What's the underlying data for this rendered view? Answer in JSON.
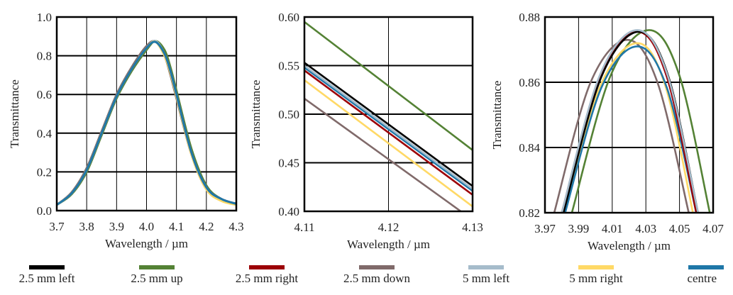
{
  "colors": {
    "2.5 mm left": "#000000",
    "2.5 mm up": "#548235",
    "2.5 mm right": "#9c0006",
    "2.5 mm down": "#806a6a",
    "5 mm left": "#a6bccb",
    "5 mm right": "#ffd966",
    "centre": "#1f77a8"
  },
  "legend": [
    "2.5 mm left",
    "2.5 mm up",
    "2.5 mm right",
    "2.5 mm down",
    "5 mm left",
    "5 mm right",
    "centre"
  ],
  "chart_data": [
    {
      "type": "line",
      "xlabel": "Wavelength / µm",
      "ylabel": "Transmittance",
      "xlim": [
        3.7,
        4.3
      ],
      "ylim": [
        0.0,
        1.0
      ],
      "xticks": [
        "3.7",
        "3.8",
        "3.9",
        "4.0",
        "4.1",
        "4.2",
        "4.3"
      ],
      "yticks": [
        "0.0",
        "0.2",
        "0.4",
        "0.6",
        "0.8",
        "1.0"
      ],
      "grid": true,
      "x": [
        3.7,
        3.75,
        3.8,
        3.85,
        3.9,
        3.95,
        4.0,
        4.03,
        4.06,
        4.08,
        4.1,
        4.15,
        4.2,
        4.25,
        4.3
      ],
      "series": [
        {
          "name": "2.5 mm left",
          "values": [
            0.03,
            0.09,
            0.21,
            0.4,
            0.59,
            0.73,
            0.84,
            0.875,
            0.81,
            0.72,
            0.6,
            0.3,
            0.12,
            0.06,
            0.035
          ]
        },
        {
          "name": "2.5 mm up",
          "values": [
            0.03,
            0.085,
            0.2,
            0.39,
            0.58,
            0.72,
            0.83,
            0.876,
            0.83,
            0.74,
            0.62,
            0.32,
            0.13,
            0.06,
            0.035
          ]
        },
        {
          "name": "2.5 mm right",
          "values": [
            0.03,
            0.09,
            0.21,
            0.4,
            0.59,
            0.73,
            0.84,
            0.875,
            0.81,
            0.72,
            0.6,
            0.3,
            0.12,
            0.06,
            0.035
          ]
        },
        {
          "name": "2.5 mm down",
          "values": [
            0.03,
            0.095,
            0.22,
            0.41,
            0.6,
            0.74,
            0.85,
            0.873,
            0.8,
            0.7,
            0.58,
            0.29,
            0.11,
            0.055,
            0.03
          ]
        },
        {
          "name": "5 mm left",
          "values": [
            0.03,
            0.09,
            0.21,
            0.4,
            0.59,
            0.73,
            0.84,
            0.876,
            0.81,
            0.72,
            0.6,
            0.3,
            0.12,
            0.06,
            0.035
          ]
        },
        {
          "name": "5 mm right",
          "values": [
            0.03,
            0.09,
            0.21,
            0.4,
            0.59,
            0.73,
            0.84,
            0.872,
            0.8,
            0.71,
            0.59,
            0.29,
            0.11,
            0.05,
            0.03
          ]
        },
        {
          "name": "centre",
          "values": [
            0.03,
            0.09,
            0.21,
            0.4,
            0.59,
            0.73,
            0.84,
            0.871,
            0.81,
            0.72,
            0.6,
            0.3,
            0.12,
            0.06,
            0.035
          ]
        }
      ]
    },
    {
      "type": "line",
      "xlabel": "Wavelength / µm",
      "ylabel": "Transmittance",
      "xlim": [
        4.11,
        4.13
      ],
      "ylim": [
        0.4,
        0.6
      ],
      "xticks": [
        "4.11",
        "4.12",
        "4.13"
      ],
      "yticks": [
        "0.40",
        "0.45",
        "0.50",
        "0.55",
        "0.60"
      ],
      "grid": true,
      "series": [
        {
          "name": "2.5 mm up",
          "points": [
            [
              4.11,
              0.595
            ],
            [
              4.13,
              0.463
            ]
          ]
        },
        {
          "name": "2.5 mm down",
          "points": [
            [
              4.11,
              0.516
            ],
            [
              4.1286,
              0.4
            ]
          ]
        },
        {
          "name": "5 mm right",
          "points": [
            [
              4.11,
              0.535
            ],
            [
              4.13,
              0.405
            ]
          ]
        },
        {
          "name": "2.5 mm right",
          "points": [
            [
              4.11,
              0.545
            ],
            [
              4.13,
              0.417
            ]
          ]
        },
        {
          "name": "centre",
          "points": [
            [
              4.11,
              0.548
            ],
            [
              4.13,
              0.421
            ]
          ]
        },
        {
          "name": "5 mm left",
          "points": [
            [
              4.11,
              0.55
            ],
            [
              4.13,
              0.423
            ]
          ]
        },
        {
          "name": "2.5 mm left",
          "points": [
            [
              4.11,
              0.553
            ],
            [
              4.13,
              0.426
            ]
          ]
        }
      ]
    },
    {
      "type": "line",
      "xlabel": "Wavelength / µm",
      "ylabel": "Transmittance",
      "xlim": [
        3.97,
        4.07
      ],
      "ylim": [
        0.82,
        0.88
      ],
      "xticks": [
        "3.97",
        "3.99",
        "4.01",
        "4.03",
        "4.05",
        "4.07"
      ],
      "yticks": [
        "0.82",
        "0.84",
        "0.86",
        "0.88"
      ],
      "grid": true,
      "series": [
        {
          "name": "2.5 mm down",
          "points": [
            [
              3.9755,
              0.82
            ],
            [
              3.997,
              0.8598
            ],
            [
              4.019,
              0.873
            ],
            [
              4.037,
              0.8598
            ],
            [
              4.0555,
              0.82
            ]
          ]
        },
        {
          "name": "2.5 mm up",
          "points": [
            [
              3.986,
              0.82
            ],
            [
              4.009,
              0.862
            ],
            [
              4.032,
              0.876
            ],
            [
              4.05,
              0.862
            ],
            [
              4.068,
              0.82
            ]
          ]
        },
        {
          "name": "5 mm right",
          "points": [
            [
              3.981,
              0.82
            ],
            [
              4.003,
              0.859
            ],
            [
              4.025,
              0.872
            ],
            [
              4.0415,
              0.859
            ],
            [
              4.058,
              0.82
            ]
          ]
        },
        {
          "name": "centre",
          "points": [
            [
              3.982,
              0.82
            ],
            [
              4.0035,
              0.8583
            ],
            [
              4.025,
              0.871
            ],
            [
              4.0425,
              0.8583
            ],
            [
              4.06,
              0.82
            ]
          ]
        },
        {
          "name": "2.5 mm right",
          "points": [
            [
              3.98,
              0.82
            ],
            [
              4.0025,
              0.8616
            ],
            [
              4.025,
              0.8755
            ],
            [
              4.0425,
              0.8616
            ],
            [
              4.06,
              0.82
            ]
          ]
        },
        {
          "name": "2.5 mm left",
          "points": [
            [
              3.981,
              0.82
            ],
            [
              4.0035,
              0.8616
            ],
            [
              4.026,
              0.8755
            ],
            [
              4.0435,
              0.8616
            ],
            [
              4.061,
              0.82
            ]
          ]
        },
        {
          "name": "5 mm left",
          "points": [
            [
              3.98,
              0.82
            ],
            [
              4.0025,
              0.862
            ],
            [
              4.025,
              0.876
            ],
            [
              4.043,
              0.862
            ],
            [
              4.061,
              0.82
            ]
          ]
        }
      ]
    }
  ]
}
